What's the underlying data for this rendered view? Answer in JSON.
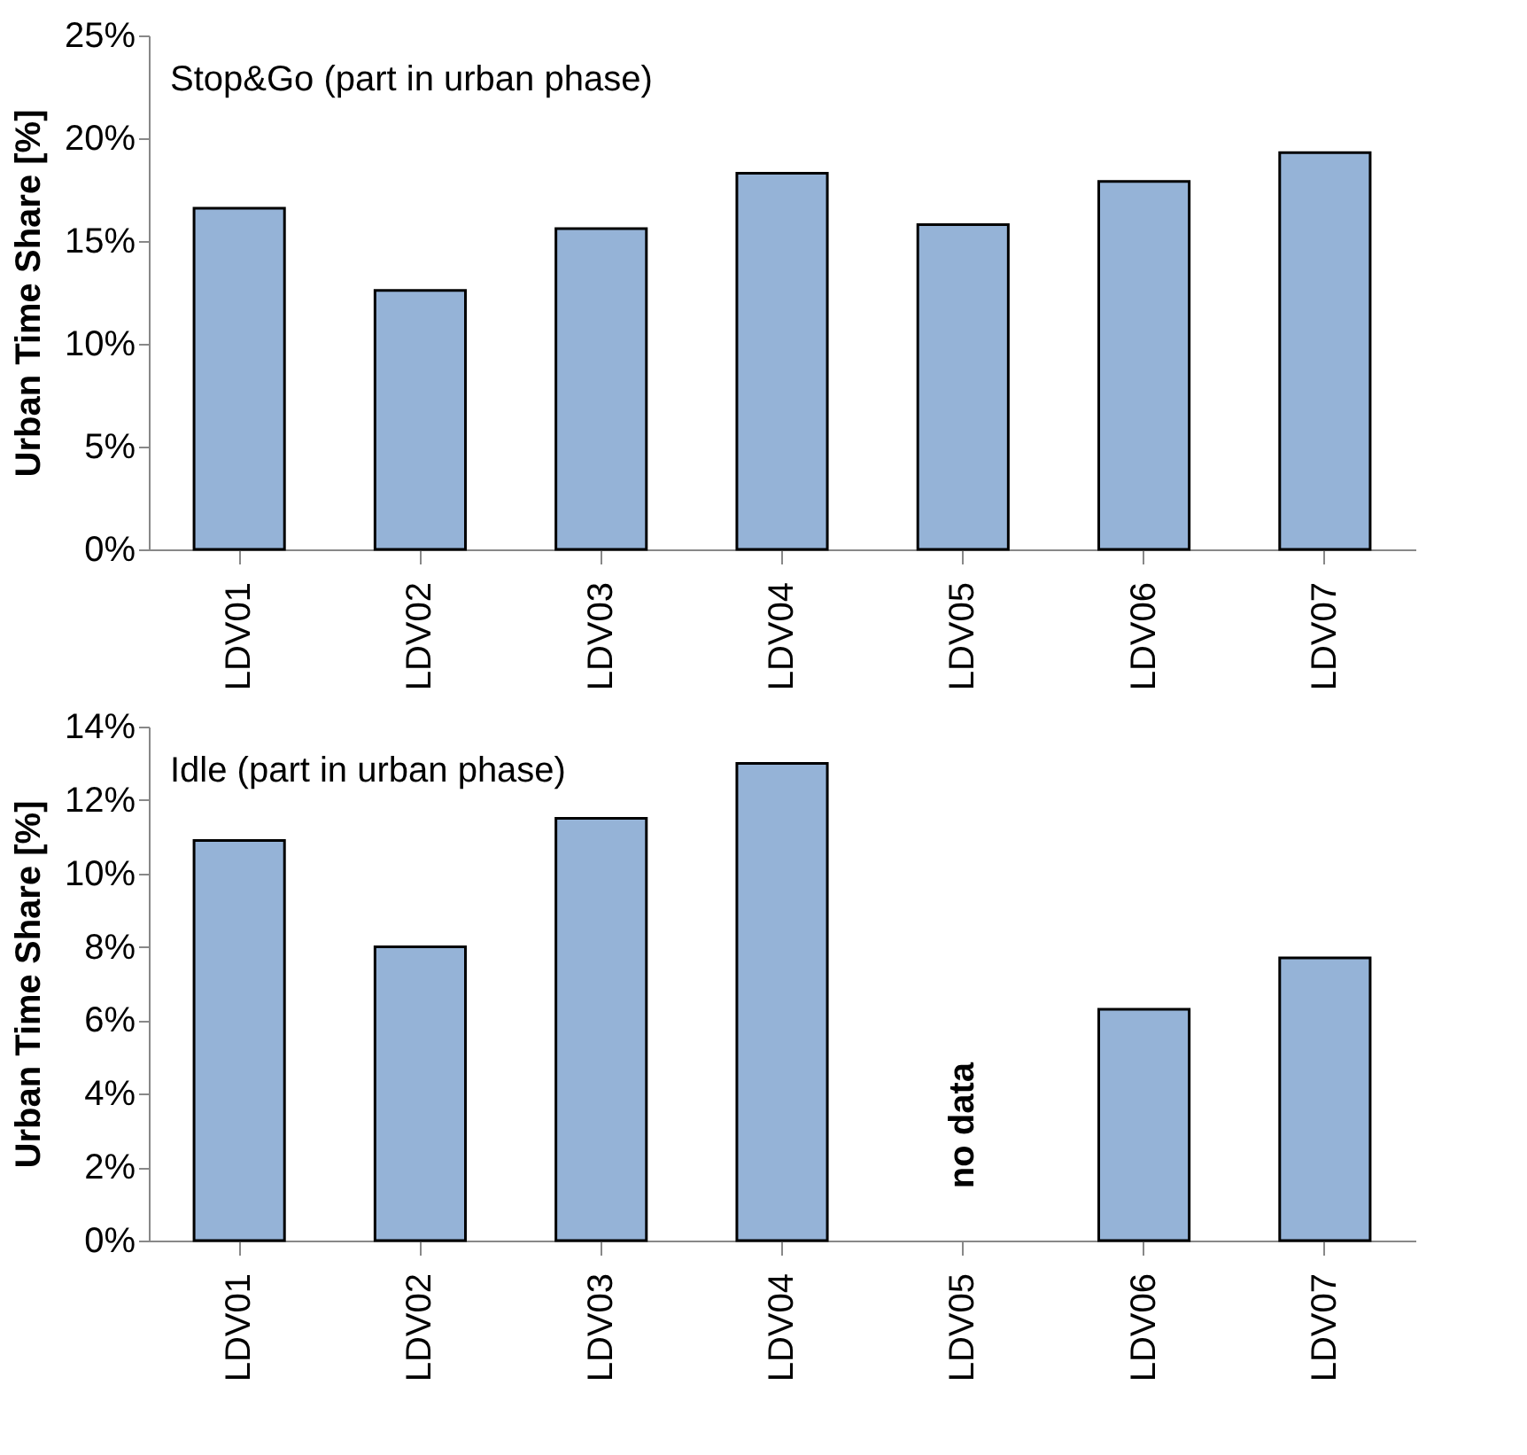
{
  "chart_data": [
    {
      "type": "bar",
      "title": "Stop&Go (part in urban phase)",
      "ylabel": "Urban Time Share [%]",
      "categories": [
        "LDV01",
        "LDV02",
        "LDV03",
        "LDV04",
        "LDV05",
        "LDV06",
        "LDV07"
      ],
      "values": [
        16.6,
        12.6,
        15.6,
        18.3,
        15.8,
        17.9,
        19.3
      ],
      "color": "#95b3d7",
      "ylim": [
        0,
        25
      ],
      "yticks": [
        {
          "value": 0,
          "label": "0%"
        },
        {
          "value": 5,
          "label": "5%"
        },
        {
          "value": 10,
          "label": "10%"
        },
        {
          "value": 15,
          "label": "15%"
        },
        {
          "value": 20,
          "label": "20%"
        },
        {
          "value": 25,
          "label": "25%"
        }
      ],
      "grid": false,
      "legend": false
    },
    {
      "type": "bar",
      "title": "Idle (part in urban phase)",
      "ylabel": "Urban Time Share [%]",
      "categories": [
        "LDV01",
        "LDV02",
        "LDV03",
        "LDV04",
        "LDV05",
        "LDV06",
        "LDV07"
      ],
      "values": [
        10.9,
        8.0,
        11.5,
        13.0,
        null,
        6.3,
        7.7
      ],
      "color": "#95b3d7",
      "ylim": [
        0,
        14
      ],
      "yticks": [
        {
          "value": 0,
          "label": "0%"
        },
        {
          "value": 2,
          "label": "2%"
        },
        {
          "value": 4,
          "label": "4%"
        },
        {
          "value": 6,
          "label": "6%"
        },
        {
          "value": 8,
          "label": "8%"
        },
        {
          "value": 10,
          "label": "10%"
        },
        {
          "value": 12,
          "label": "12%"
        },
        {
          "value": 14,
          "label": "14%"
        }
      ],
      "annotations": [
        "no data"
      ],
      "grid": false,
      "legend": false
    }
  ]
}
